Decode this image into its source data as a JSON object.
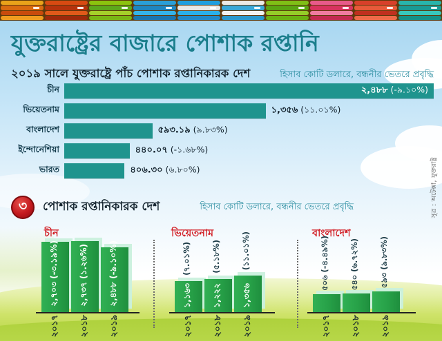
{
  "header": {
    "title": "যুক্তরাষ্ট্রের বাজারে পোশাক রপ্তানি",
    "fabric_stacks": [
      [
        "#e9a21a",
        "#d96a10",
        "#c84b0c",
        "#ef9c1f"
      ],
      [
        "#d84a12",
        "#b5330d",
        "#e05a1a",
        "#9c2a0c"
      ],
      [
        "#8bc30e",
        "#5da81c",
        "#a5d02a",
        "#79b515"
      ],
      [
        "#2a9fd8",
        "#1f86c0",
        "#35b3e8",
        "#1a75ae"
      ],
      [
        "#1f9ede",
        "#e8e8e6",
        "#2ab0ea",
        "#2089c8"
      ],
      [
        "#eceae6",
        "#3aa8d8",
        "#f2f2f0",
        "#2a98cc"
      ],
      [
        "#7fbf16",
        "#5aa512",
        "#95cc28",
        "#6ab012"
      ],
      [
        "#e85a8a",
        "#d8335f",
        "#f07ba0",
        "#c22a50"
      ],
      [
        "#d8402a",
        "#e85a3a",
        "#c0301e",
        "#ef6a48"
      ],
      [
        "#28b5ac",
        "#1a9a94",
        "#38c8bc",
        "#159086"
      ]
    ]
  },
  "top_chart": {
    "title": "২০১৯ সালে যুক্তরাষ্ট্রে পাঁচ পোশাক রপ্তানিকারক দেশ",
    "note": "হিসাব কোটি ডলারে, বন্ধনীর ভেতরে প্রবৃদ্ধি",
    "bars": [
      {
        "country": "চীন",
        "value": 2488,
        "value_label": "২,৪৮৮",
        "growth_label": "(-৯.১০%)",
        "label_position": "inside"
      },
      {
        "country": "ভিয়েতনাম",
        "value": 1356,
        "value_label": "১,৩৫৬",
        "growth_label": "(১১.০১%)",
        "label_position": "outside"
      },
      {
        "country": "বাংলাদেশ",
        "value": 593.19,
        "value_label": "৫৯৩.১৯",
        "growth_label": "(৯.৮৩%)",
        "label_position": "outside"
      },
      {
        "country": "ইন্দোনেশিয়া",
        "value": 440.07,
        "value_label": "৪৪০.০৭",
        "growth_label": "(-১.৬৮%)",
        "label_position": "outside"
      },
      {
        "country": "ভারত",
        "value": 406.3,
        "value_label": "৪০৬.৩০",
        "growth_label": "(৬.৮০%)",
        "label_position": "outside"
      }
    ]
  },
  "section2": {
    "badge": "৩",
    "title": "পোশাক রপ্তানিকারক দেশ",
    "note": "হিসাব কোটি ডলারে, বন্ধনীর ভেতরে প্রবৃদ্ধি",
    "groups": [
      {
        "country": "চীন",
        "label_style": "inside",
        "bars": [
          {
            "year": "২০১৭",
            "value": 2703,
            "value_label": "২,৭০৩",
            "growth_label": "(-৩.১৯%)"
          },
          {
            "year": "২০১৮",
            "value": 2737,
            "value_label": "২,৭৩৭",
            "growth_label": "(১.২৬%)"
          },
          {
            "year": "২০১৯",
            "value": 2488,
            "value_label": "২,৪৮৮",
            "growth_label": "(-৯.১০%)"
          }
        ]
      },
      {
        "country": "ভিয়েতনাম",
        "label_style": "split",
        "bars": [
          {
            "year": "২০১৭",
            "value": 1163,
            "value_label": "১,১৬৩",
            "growth_label": "(৭.০১%)"
          },
          {
            "year": "২০১৮",
            "value": 1222,
            "value_label": "১,২২২",
            "growth_label": "(৫.১৮%)"
          },
          {
            "year": "২০১৯",
            "value": 1356,
            "value_label": "১,৩৫৬",
            "growth_label": "(১১.০১%)"
          }
        ]
      },
      {
        "country": "বাংলাদেশ",
        "label_style": "above",
        "bars": [
          {
            "year": "২০১৭",
            "value": 506,
            "value_label": "৫০৬",
            "growth_label": "(-৪.৪৯%)"
          },
          {
            "year": "২০১৮",
            "value": 540,
            "value_label": "৫৪০",
            "growth_label": "(৬.৭২%)"
          },
          {
            "year": "২০১৯",
            "value": 593,
            "value_label": "৫৯৩",
            "growth_label": "(৯.৮৩%)"
          }
        ]
      }
    ]
  },
  "source": "সূত্র : অটেক্সা, যুক্তরাষ্ট্র",
  "colors": {
    "title_teal": "#1b7e8c",
    "bar_teal": "#1f948e",
    "note_teal": "#2e8fa2",
    "red_accent": "#d21f26",
    "green_bar": "#27a148",
    "text_dark": "#14242e"
  },
  "chart_data": [
    {
      "type": "bar",
      "orientation": "horizontal",
      "title": "২০১৯ সালে যুক্তরাষ্ট্রে পাঁচ পোশাক রপ্তানিকারক দেশ",
      "note": "হিসাব কোটি ডলারে, বন্ধনীর ভেতরে প্রবৃদ্ধি",
      "unit": "কোটি ডলার",
      "categories": [
        "চীন",
        "ভিয়েতনাম",
        "বাংলাদেশ",
        "ইন্দোনেশিয়া",
        "ভারত"
      ],
      "values": [
        2488,
        1356,
        593.19,
        440.07,
        406.3
      ],
      "growth_pct": [
        -9.1,
        11.01,
        9.83,
        -1.68,
        6.8
      ],
      "xlim": [
        0,
        2488
      ],
      "grid": false,
      "legend": "none"
    },
    {
      "type": "bar",
      "orientation": "vertical",
      "title": "৩ পোশাক রপ্তানিকারক দেশ",
      "note": "হিসাব কোটি ডলারে, বন্ধনীর ভেতরে প্রবৃদ্ধি",
      "unit": "কোটি ডলার",
      "categories": [
        "২০১৭",
        "২০১৮",
        "২০১৯"
      ],
      "series": [
        {
          "name": "চীন",
          "values": [
            2703,
            2737,
            2488
          ],
          "growth_pct": [
            -3.19,
            1.26,
            -9.1
          ]
        },
        {
          "name": "ভিয়েতনাম",
          "values": [
            1163,
            1222,
            1356
          ],
          "growth_pct": [
            7.01,
            5.18,
            11.01
          ]
        },
        {
          "name": "বাংলাদেশ",
          "values": [
            506,
            540,
            593
          ],
          "growth_pct": [
            -4.49,
            6.72,
            9.83
          ]
        }
      ],
      "layout": "three small multiples, one per country, dotted separators",
      "grid": false,
      "legend": "none"
    }
  ]
}
